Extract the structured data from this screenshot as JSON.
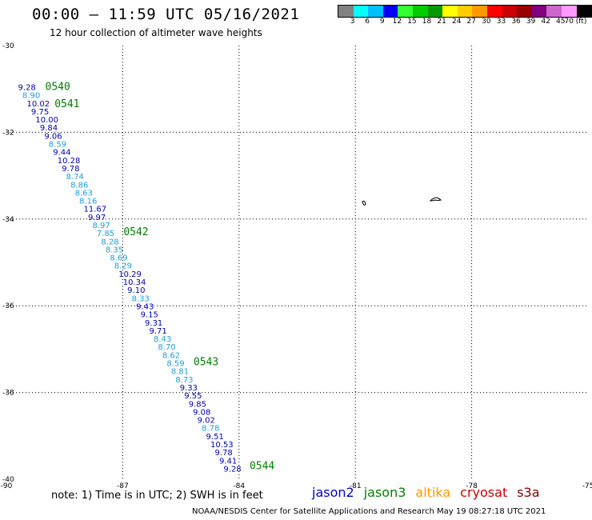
{
  "header": {
    "title": "00:00 – 11:59 UTC 05/16/2021",
    "subtitle": "12 hour collection of altimeter wave heights"
  },
  "colorbar": {
    "colors": [
      "#808080",
      "#00ffff",
      "#00bfff",
      "#0000ff",
      "#33ff33",
      "#00cc00",
      "#009900",
      "#ffff00",
      "#ffcc00",
      "#ff9900",
      "#ff0000",
      "#cc0000",
      "#990000",
      "#800080",
      "#cc66cc",
      "#ff99ff",
      "#000000"
    ],
    "ticks": [
      "3",
      "6",
      "9",
      "12",
      "15",
      "18",
      "21",
      "24",
      "27",
      "30",
      "33",
      "36",
      "39",
      "42",
      "45",
      "70 (ft)"
    ]
  },
  "axes": {
    "lat_labels": [
      "-30",
      "-32",
      "-34",
      "-36",
      "-38",
      "-40"
    ],
    "lon_labels": [
      "-90",
      "-87",
      "-84",
      "-81",
      "-78",
      "-75"
    ]
  },
  "chart_data": {
    "type": "scatter",
    "lat_range": [
      -40,
      -30
    ],
    "lon_range": [
      -90,
      -75
    ],
    "units": "ft",
    "time_stamps": [
      {
        "label": "0540",
        "lat": -30.95
      },
      {
        "label": "0541",
        "lat": -31.35
      },
      {
        "label": "0542",
        "lat": -34.3
      },
      {
        "label": "0543",
        "lat": -37.3
      },
      {
        "label": "0544",
        "lat": -39.7
      }
    ],
    "tracks": [
      {
        "values": [
          9.28,
          8.9,
          10.02,
          9.75,
          10.0,
          9.84,
          9.06,
          8.59,
          9.44,
          10.28,
          9.78,
          8.74,
          8.86,
          8.63,
          8.16,
          11.67,
          9.97,
          8.97,
          7.85,
          8.28,
          8.35,
          8.69,
          8.29,
          10.29,
          10.34,
          9.1,
          8.33,
          9.43,
          9.15,
          9.31,
          9.71,
          8.43,
          8.7,
          8.62,
          8.59,
          8.81,
          8.73,
          9.33,
          9.55,
          9.85,
          9.08,
          9.02,
          8.78,
          9.51,
          10.53,
          9.78,
          9.41,
          9.28
        ],
        "lat_start": -30.95,
        "lat_end": -39.75,
        "lon_start": -89.7,
        "lon_end": -84.4
      }
    ],
    "legend": [
      "jason2",
      "jason3",
      "altika",
      "cryosat",
      "s3a"
    ]
  },
  "legend_colors": {
    "jason2": "#0000cc",
    "jason3": "#007f00",
    "altika": "#ff9900",
    "cryosat": "#cc0000",
    "s3a": "#800000"
  },
  "note": "note: 1) Time is in UTC; 2) SWH is in feet",
  "footer": "NOAA/NESDIS Center for Satellite Applications and Research    May 19 08:27:18 UTC 2021"
}
